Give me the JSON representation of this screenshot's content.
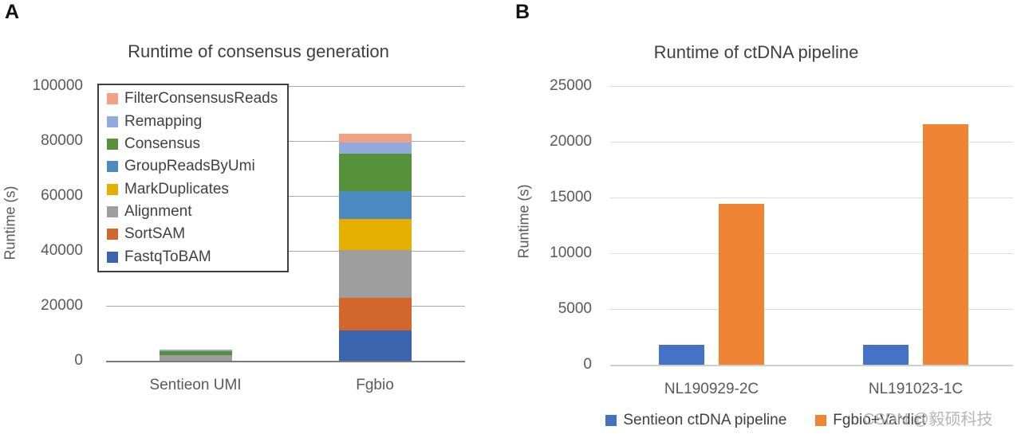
{
  "panels": {
    "a": {
      "label": "A"
    },
    "b": {
      "label": "B"
    }
  },
  "watermark": "CSDN @毅硕科技",
  "chart_data": [
    {
      "id": "consensus-generation",
      "type": "bar",
      "stacked": true,
      "title": "Runtime of consensus generation",
      "xlabel": "",
      "ylabel": "Runtime (s)",
      "ylim": [
        0,
        100000
      ],
      "ytick_step": 20000,
      "grid": true,
      "legend_position": "upper-left-box",
      "categories": [
        "Sentieon UMI",
        "Fgbio"
      ],
      "series": [
        {
          "name": "FastqToBAM",
          "color": "#3A64AD",
          "values": [
            0,
            11000
          ]
        },
        {
          "name": "SortSAM",
          "color": "#D2662C",
          "values": [
            0,
            12000
          ]
        },
        {
          "name": "Alignment",
          "color": "#9E9E9E",
          "values": [
            2100,
            17200
          ]
        },
        {
          "name": "MarkDuplicates",
          "color": "#E5AF00",
          "values": [
            0,
            11300
          ]
        },
        {
          "name": "GroupReadsByUmi",
          "color": "#4E8AC2",
          "values": [
            0,
            10300
          ]
        },
        {
          "name": "Consensus",
          "color": "#579139",
          "values": [
            1400,
            13500
          ]
        },
        {
          "name": "Remapping",
          "color": "#92AADC",
          "values": [
            700,
            4200
          ]
        },
        {
          "name": "FilterConsensusReads",
          "color": "#F2A283",
          "values": [
            0,
            3100
          ]
        }
      ],
      "legend_order": [
        "FilterConsensusReads",
        "Remapping",
        "Consensus",
        "GroupReadsByUmi",
        "MarkDuplicates",
        "Alignment",
        "SortSAM",
        "FastqToBAM"
      ]
    },
    {
      "id": "ctdna-pipeline",
      "type": "bar",
      "stacked": false,
      "title": "Runtime of ctDNA pipeline",
      "xlabel": "",
      "ylabel": "Runtime (s)",
      "ylim": [
        0,
        25000
      ],
      "ytick_step": 5000,
      "grid": true,
      "legend_position": "bottom",
      "categories": [
        "NL190929-2C",
        "NL191023-1C"
      ],
      "series": [
        {
          "name": "Sentieon ctDNA pipeline",
          "color": "#4472C4",
          "values": [
            1800,
            1800
          ]
        },
        {
          "name": "Fgbio+Vardict",
          "color": "#EE8434",
          "values": [
            14400,
            21600
          ]
        }
      ]
    }
  ]
}
